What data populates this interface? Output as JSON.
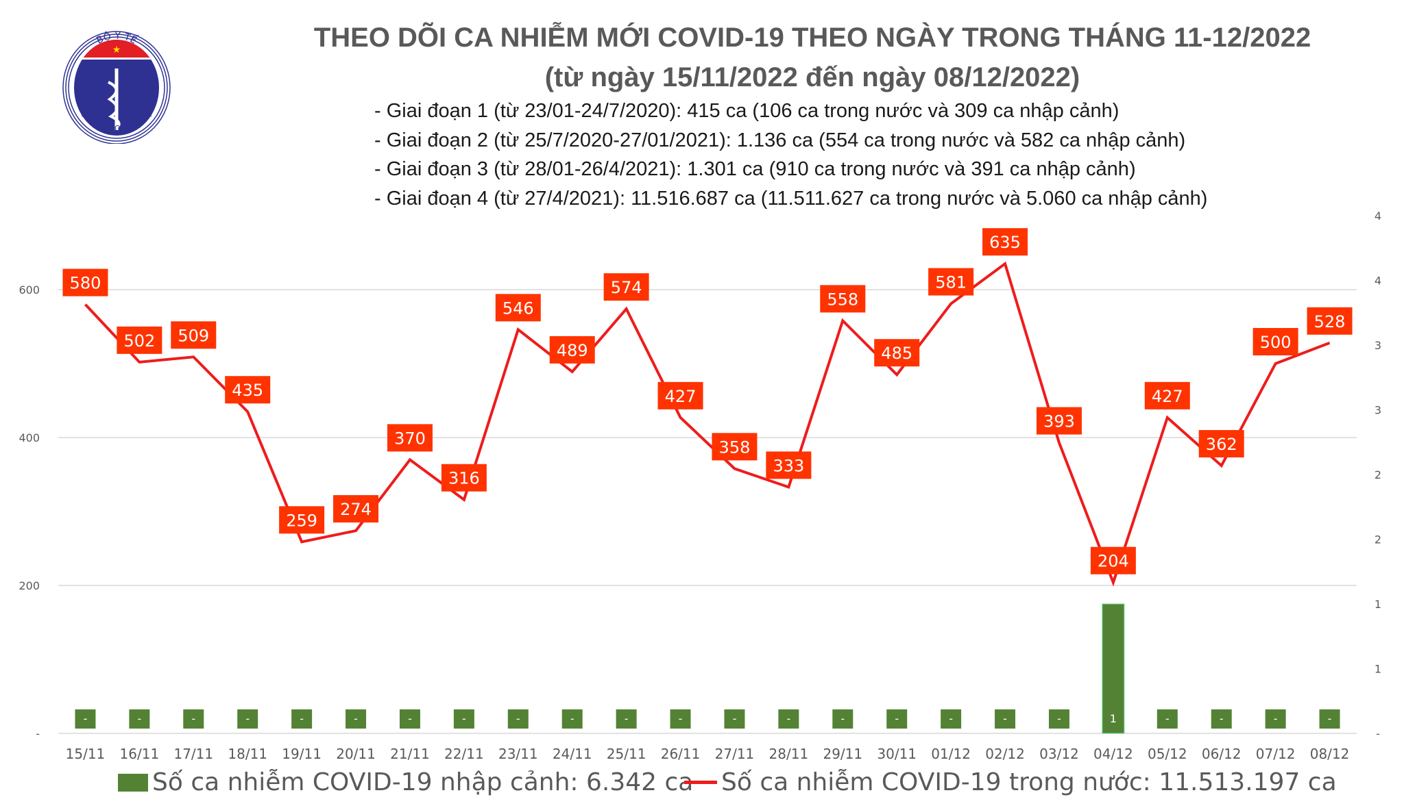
{
  "logo": {
    "top_text": "BỘ Y TẾ",
    "bottom_text": "MINISTRY OF HEALTH"
  },
  "title_line1": "THEO DÕI CA NHIỄM MỚI COVID-19 THEO NGÀY TRONG THÁNG 11-12/2022",
  "title_line2": "(từ ngày 15/11/2022 đến ngày 08/12/2022)",
  "bullets": [
    "- Giai đoạn 1 (từ 23/01-24/7/2020): 415 ca (106 ca trong nước và 309 ca nhập cảnh)",
    "- Giai đoạn 2 (từ 25/7/2020-27/01/2021): 1.136 ca (554 ca trong nước và 582 ca nhập cảnh)",
    "- Giai đoạn 3 (từ 28/01-26/4/2021): 1.301 ca (910 ca trong nước và 391 ca nhập cảnh)",
    "- Giai đoạn 4 (từ 27/4/2021): 11.516.687 ca (11.511.627 ca trong nước và 5.060 ca nhập cảnh)"
  ],
  "colors": {
    "line": "#ee1c1c",
    "label_bg": "#ff3300",
    "bar": "#548235",
    "grid": "#d9d9d9",
    "axis_text": "#595959"
  },
  "chart_data": {
    "type": "bar+line",
    "categories": [
      "15/11",
      "16/11",
      "17/11",
      "18/11",
      "19/11",
      "20/11",
      "21/11",
      "22/11",
      "23/11",
      "24/11",
      "25/11",
      "26/11",
      "27/11",
      "28/11",
      "29/11",
      "30/11",
      "01/12",
      "02/12",
      "03/12",
      "04/12",
      "05/12",
      "06/12",
      "07/12",
      "08/12"
    ],
    "series": [
      {
        "name": "Số ca nhiễm COVID-19 nhập cảnh: 6.342 ca",
        "type": "bar",
        "axis": "right",
        "values": [
          0,
          0,
          0,
          0,
          0,
          0,
          0,
          0,
          0,
          0,
          0,
          0,
          0,
          0,
          0,
          0,
          0,
          0,
          0,
          1,
          0,
          0,
          0,
          0
        ],
        "labels": [
          "-",
          "-",
          "-",
          "-",
          "-",
          "-",
          "-",
          "-",
          "-",
          "-",
          "-",
          "-",
          "-",
          "-",
          "-",
          "-",
          "-",
          "-",
          "-",
          "1",
          "-",
          "-",
          "-",
          "-"
        ]
      },
      {
        "name": "Số ca nhiễm COVID-19 trong nước: 11.513.197 ca",
        "type": "line",
        "axis": "left",
        "values": [
          580,
          502,
          509,
          435,
          259,
          274,
          370,
          316,
          546,
          489,
          574,
          427,
          358,
          333,
          558,
          485,
          581,
          635,
          393,
          204,
          427,
          362,
          500,
          528
        ]
      }
    ],
    "left_axis": {
      "ylim": [
        0,
        700
      ],
      "ticks": [
        0,
        200,
        400,
        600
      ],
      "tick_labels": [
        "-",
        "200",
        "400",
        "600"
      ]
    },
    "right_axis": {
      "ylim": [
        0,
        4
      ],
      "ticks": [
        0,
        0.5,
        1,
        1.5,
        2,
        2.5,
        3,
        3.5,
        4
      ],
      "tick_labels": [
        "-",
        "1",
        "1",
        "2",
        "2",
        "3",
        "3",
        "4",
        "4"
      ]
    },
    "grid": true,
    "legend": "bottom"
  },
  "legend": {
    "bar_label": "Số ca nhiễm COVID-19 nhập cảnh: 6.342 ca",
    "line_label": "Số ca nhiễm COVID-19 trong nước: 11.513.197 ca"
  }
}
